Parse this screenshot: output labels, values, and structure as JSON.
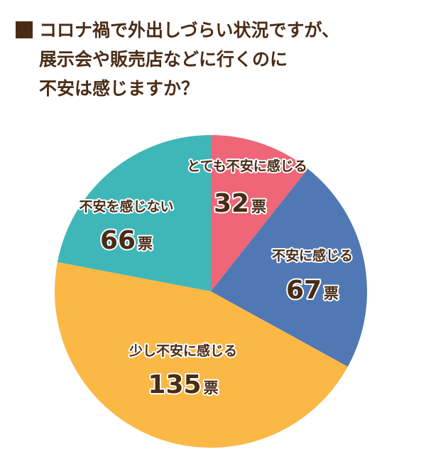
{
  "title_lines": [
    "コロナ禍で外出しづらい状況ですが、",
    "展示会や販売店などに行くのに",
    "不安は感じますか？"
  ],
  "chart_data": {
    "type": "pie",
    "unit": "票",
    "slices": [
      {
        "label": "とても不安に感じる",
        "value": 32,
        "color": "#ee6677"
      },
      {
        "label": "不安に感じる",
        "value": 67,
        "color": "#5078b4"
      },
      {
        "label": "少し不安に感じる",
        "value": 135,
        "color": "#fbb845"
      },
      {
        "label": "不安を感じない",
        "value": 66,
        "color": "#3fb6b8"
      }
    ]
  }
}
